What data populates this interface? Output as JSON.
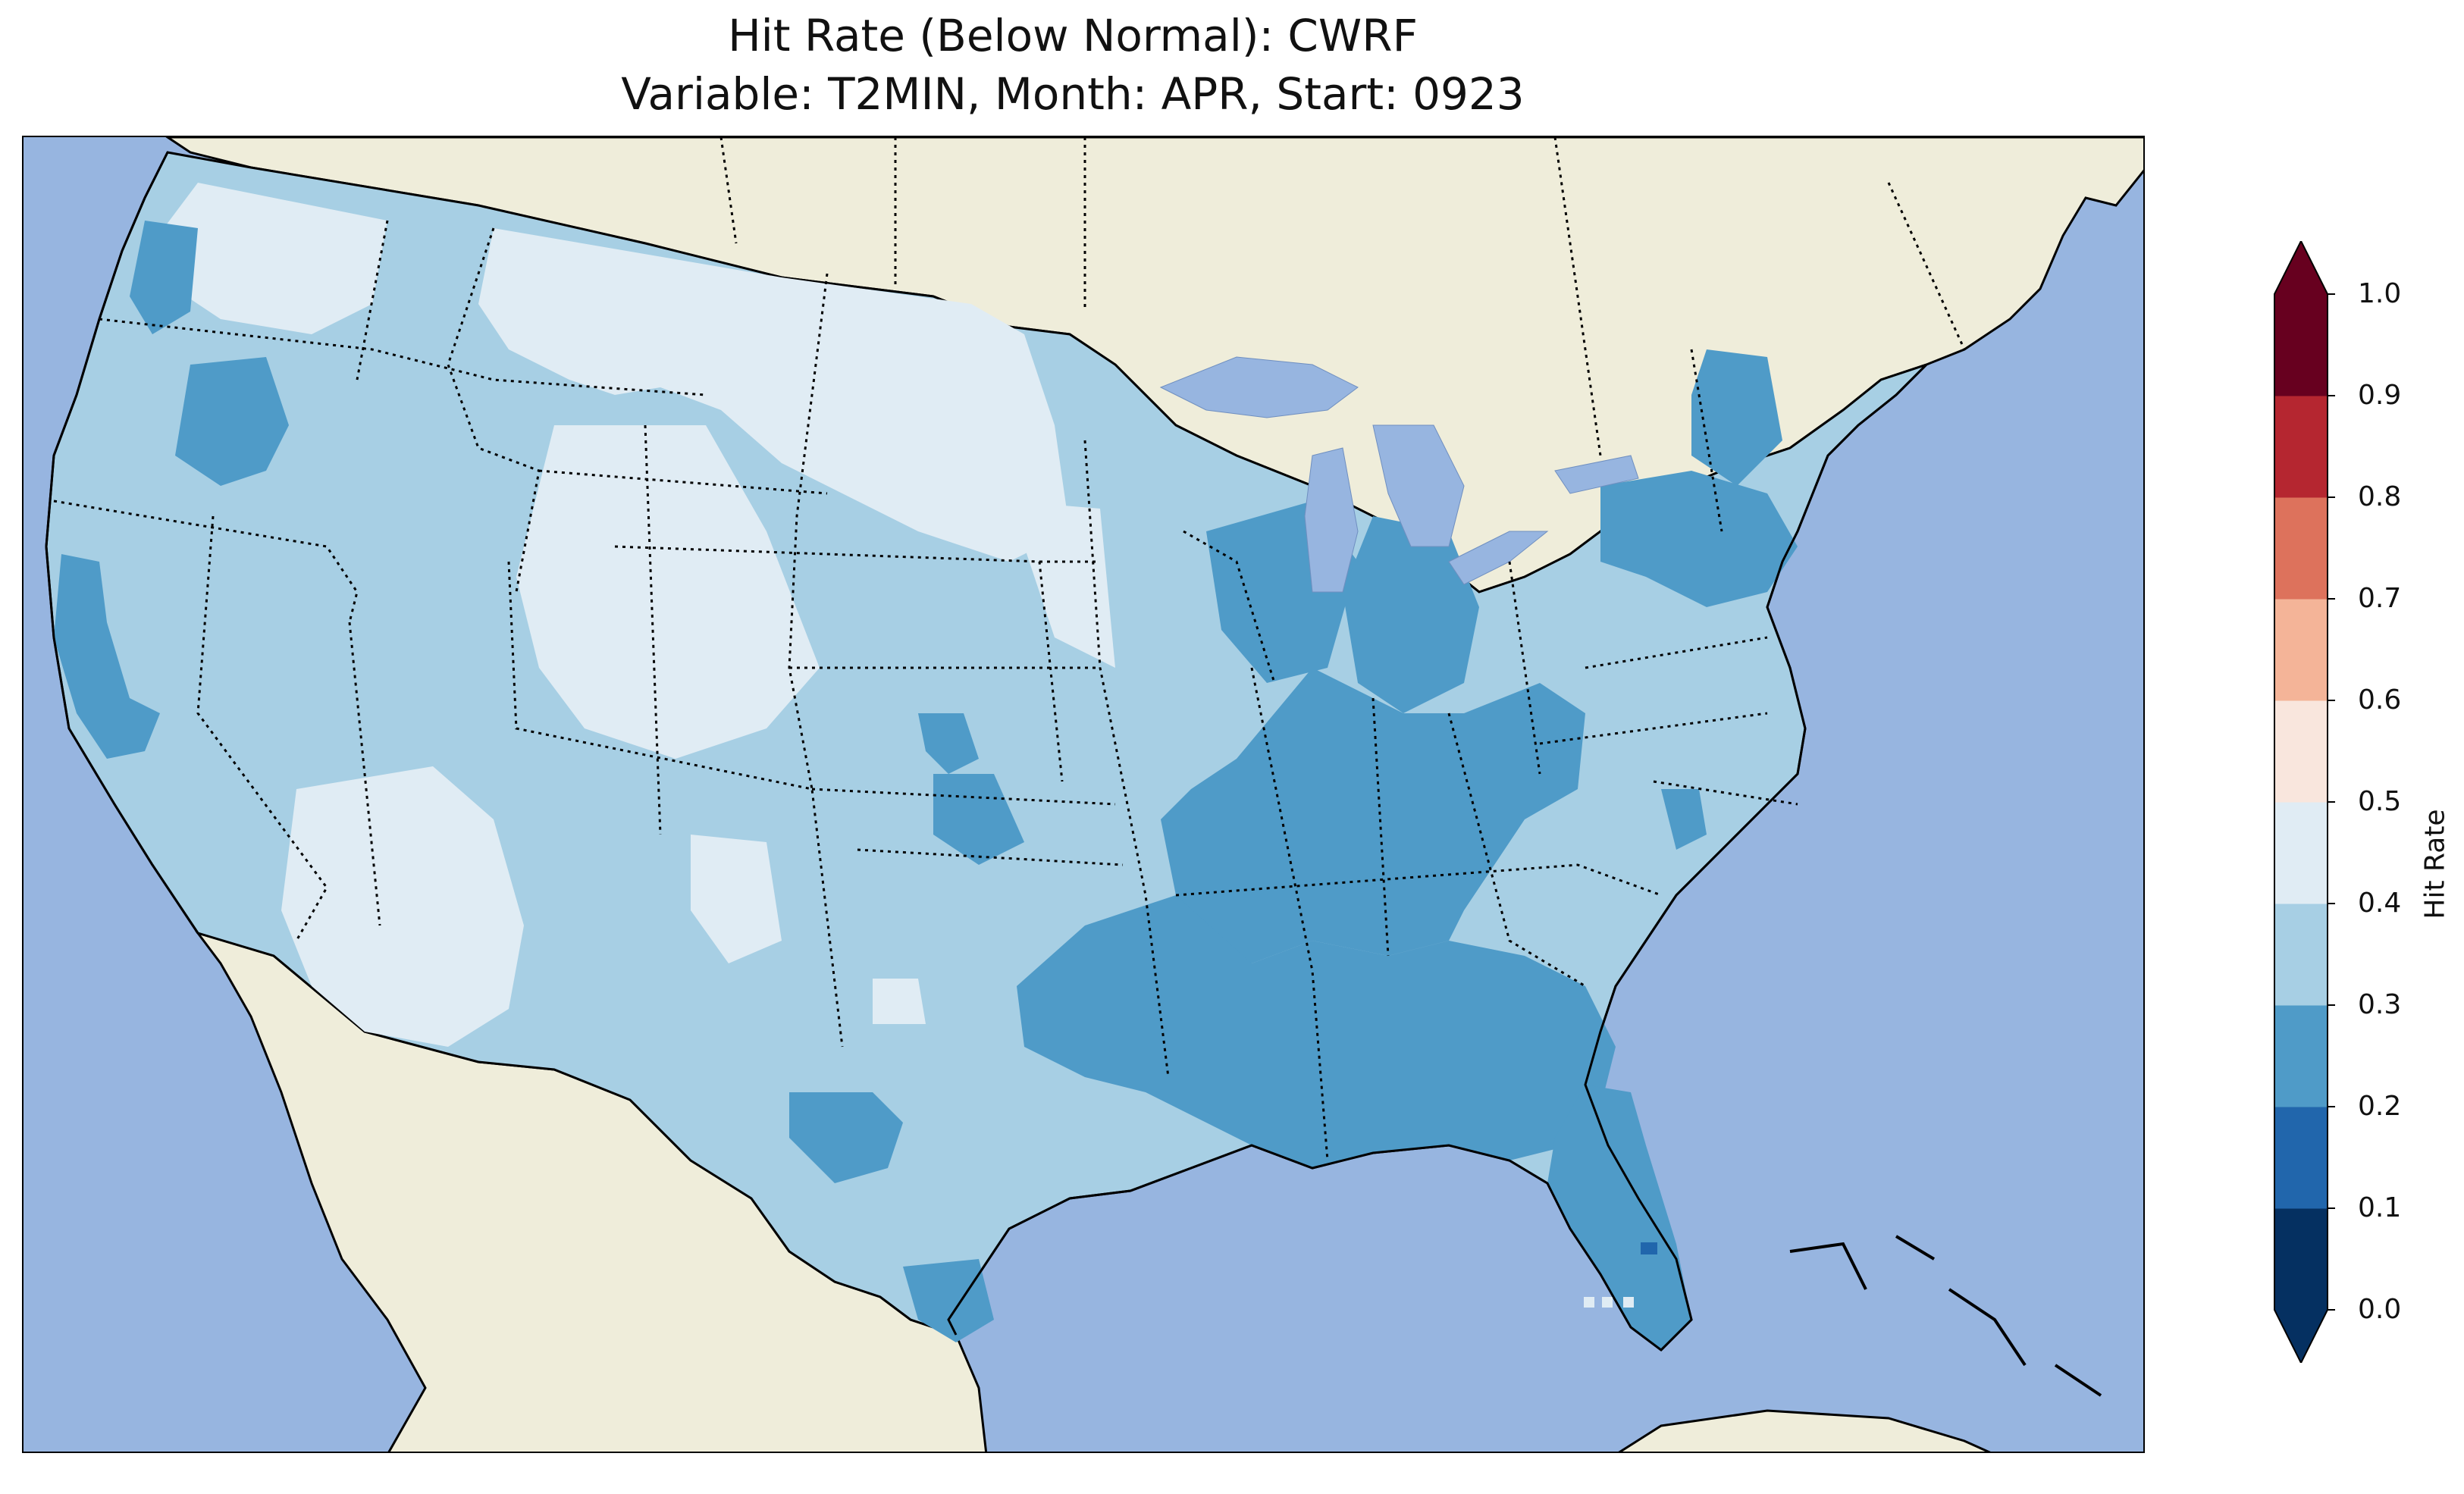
{
  "title_line1": "Hit Rate (Below Normal): CWRF",
  "title_line2": "Variable: T2MIN, Month: APR, Start: 0923",
  "colorbar": {
    "label": "Hit Rate",
    "ticks": [
      "0.0",
      "0.1",
      "0.2",
      "0.3",
      "0.4",
      "0.5",
      "0.6",
      "0.7",
      "0.8",
      "0.9",
      "1.0"
    ],
    "bins": [
      {
        "range": "0.0-0.1",
        "color": "#053061"
      },
      {
        "range": "0.1-0.2",
        "color": "#2166ac"
      },
      {
        "range": "0.2-0.3",
        "color": "#4f9bc8"
      },
      {
        "range": "0.3-0.4",
        "color": "#a7cfe4"
      },
      {
        "range": "0.4-0.5",
        "color": "#e0ecf4"
      },
      {
        "range": "0.5-0.6",
        "color": "#f9e6dd"
      },
      {
        "range": "0.6-0.7",
        "color": "#f4b498"
      },
      {
        "range": "0.7-0.8",
        "color": "#dd725c"
      },
      {
        "range": "0.8-0.9",
        "color": "#b52630"
      },
      {
        "range": "0.9-1.0",
        "color": "#67001f"
      }
    ]
  },
  "map_colors": {
    "ocean": "#97b5e0",
    "land": "#efedda",
    "lakes": "#97b5e0"
  }
}
